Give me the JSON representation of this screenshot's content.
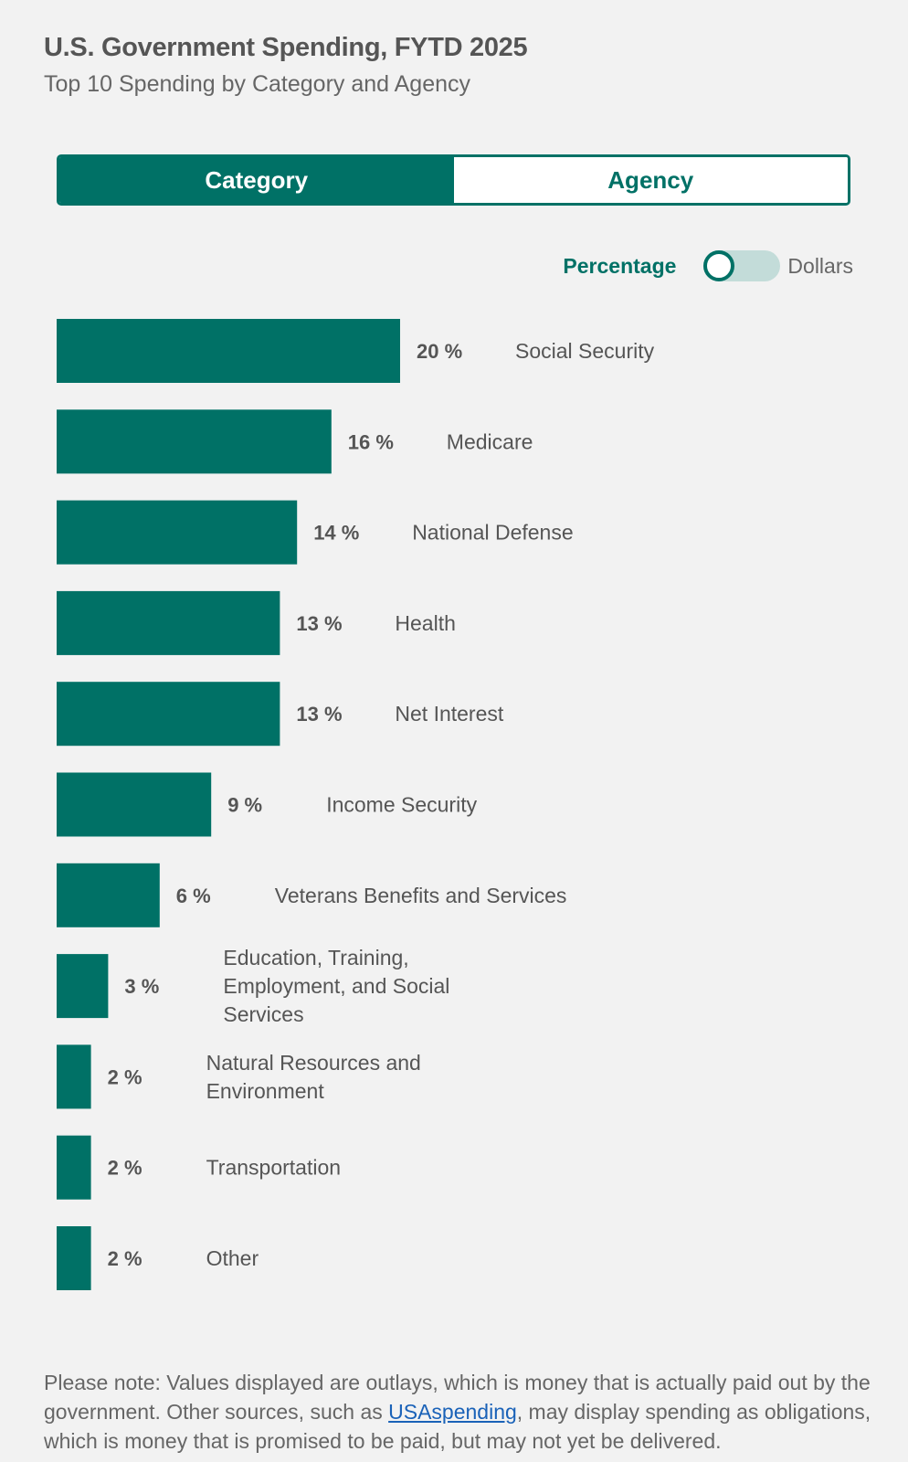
{
  "header": {
    "title": "U.S. Government Spending, FYTD 2025",
    "subtitle": "Top 10 Spending by Category and Agency"
  },
  "tabs": [
    {
      "label": "Category",
      "active": true
    },
    {
      "label": "Agency",
      "active": false
    }
  ],
  "toggle": {
    "left_label": "Percentage",
    "right_label": "Dollars",
    "selected": "Percentage"
  },
  "colors": {
    "accent": "#007166",
    "bar": "#007166",
    "link": "#1a62b8"
  },
  "chart_data": {
    "type": "bar",
    "orientation": "horizontal",
    "unit": "%",
    "categories": [
      "Social Security",
      "Medicare",
      "National Defense",
      "Health",
      "Net Interest",
      "Income Security",
      "Veterans Benefits and Services",
      "Education, Training, Employment, and Social Services",
      "Natural Resources and Environment",
      "Transportation",
      "Other"
    ],
    "values": [
      20,
      16,
      14,
      13,
      13,
      9,
      6,
      3,
      2,
      2,
      2
    ],
    "value_labels": [
      "20 %",
      "16 %",
      "14 %",
      "13 %",
      "13 %",
      "9 %",
      "6 %",
      "3 %",
      "2 %",
      "2 %",
      "2 %"
    ],
    "category_lines": [
      [
        "Social Security"
      ],
      [
        "Medicare"
      ],
      [
        "National Defense"
      ],
      [
        "Health"
      ],
      [
        "Net Interest"
      ],
      [
        "Income Security"
      ],
      [
        "Veterans Benefits and Services"
      ],
      [
        "Education, Training,",
        "Employment, and Social",
        "Services"
      ],
      [
        "Natural Resources and",
        "Environment"
      ],
      [
        "Transportation"
      ],
      [
        "Other"
      ]
    ]
  },
  "note": {
    "before_link": "Please note: Values displayed are outlays, which is money that is actually paid out by the government. Other sources, such as ",
    "link_text": "USAspending",
    "after_link": ", may display spending as obligations, which is money that is promised to be paid, but may not yet be delivered."
  }
}
